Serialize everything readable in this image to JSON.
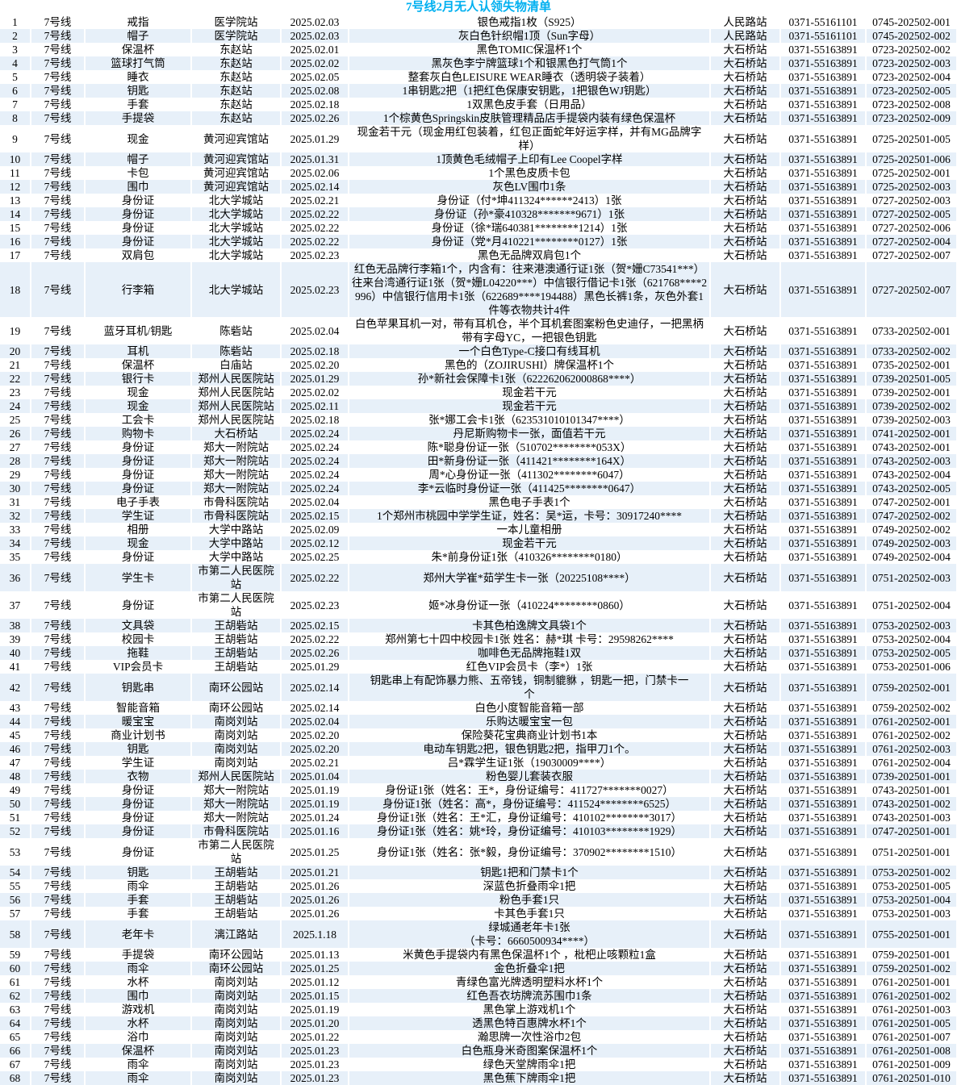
{
  "title": "7号线2月无人认领失物清单",
  "table": {
    "rows": [
      [
        "1",
        "7号线",
        "戒指",
        "医学院站",
        "2025.02.03",
        "银色戒指1枚（S925）",
        "人民路站",
        "0371-55161101",
        "0745-202502-001"
      ],
      [
        "2",
        "7号线",
        "帽子",
        "医学院站",
        "2025.02.03",
        "灰白色针织帽1顶（Sun字母）",
        "人民路站",
        "0371-55161101",
        "0745-202502-002"
      ],
      [
        "3",
        "7号线",
        "保温杯",
        "东赵站",
        "2025.02.01",
        "黑色TOMIC保温杯1个",
        "大石桥站",
        "0371-55163891",
        "0723-202502-002"
      ],
      [
        "4",
        "7号线",
        "篮球打气筒",
        "东赵站",
        "2025.02.02",
        "黑灰色李宁牌篮球1个和银黑色打气筒1个",
        "大石桥站",
        "0371-55163891",
        "0723-202502-003"
      ],
      [
        "5",
        "7号线",
        "睡衣",
        "东赵站",
        "2025.02.05",
        "整套灰白色LEISURE WEAR睡衣（透明袋子装着）",
        "大石桥站",
        "0371-55163891",
        "0723-202502-004"
      ],
      [
        "6",
        "7号线",
        "钥匙",
        "东赵站",
        "2025.02.08",
        "1串钥匙2把（1把红色保康安钥匙，1把银色WJ钥匙）",
        "大石桥站",
        "0371-55163891",
        "0723-202502-005"
      ],
      [
        "7",
        "7号线",
        "手套",
        "东赵站",
        "2025.02.18",
        "1双黑色皮手套（日用品）",
        "大石桥站",
        "0371-55163891",
        "0723-202502-008"
      ],
      [
        "8",
        "7号线",
        "手提袋",
        "东赵站",
        "2025.02.26",
        "1个棕黄色Springskin皮肤管理精品店手提袋内装有绿色保温杯",
        "大石桥站",
        "0371-55163891",
        "0723-202502-009"
      ],
      [
        "9",
        "7号线",
        "现金",
        "黄河迎宾馆站",
        "2025.01.29",
        "现金若干元（现金用红包装着，红包正面蛇年好运字样，并有MG品牌字样）",
        "大石桥站",
        "0371-55163891",
        "0725-202501-005"
      ],
      [
        "10",
        "7号线",
        "帽子",
        "黄河迎宾馆站",
        "2025.01.31",
        "1顶黄色毛绒帽子上印有Lee Coopel字样",
        "大石桥站",
        "0371-55163891",
        "0725-202501-006"
      ],
      [
        "11",
        "7号线",
        "卡包",
        "黄河迎宾馆站",
        "2025.02.06",
        "1个黑色皮质卡包",
        "大石桥站",
        "0371-55163891",
        "0725-202502-001"
      ],
      [
        "12",
        "7号线",
        "围巾",
        "黄河迎宾馆站",
        "2025.02.14",
        "灰色LV围巾1条",
        "大石桥站",
        "0371-55163891",
        "0725-202502-003"
      ],
      [
        "13",
        "7号线",
        "身份证",
        "北大学城站",
        "2025.02.21",
        "身份证（付*坤411324******2413）1张",
        "大石桥站",
        "0371-55163891",
        "0727-202502-003"
      ],
      [
        "14",
        "7号线",
        "身份证",
        "北大学城站",
        "2025.02.22",
        "身份证（孙*豪410328*******9671）1张",
        "大石桥站",
        "0371-55163891",
        "0727-202502-005"
      ],
      [
        "15",
        "7号线",
        "身份证",
        "北大学城站",
        "2025.02.22",
        "身份证（徐*瑞640381********1214）1张",
        "大石桥站",
        "0371-55163891",
        "0727-202502-006"
      ],
      [
        "16",
        "7号线",
        "身份证",
        "北大学城站",
        "2025.02.22",
        "身份证（党*月410221********0127）1张",
        "大石桥站",
        "0371-55163891",
        "0727-202502-004"
      ],
      [
        "17",
        "7号线",
        "双肩包",
        "北大学城站",
        "2025.02.23",
        "黑色无品牌双肩包1个",
        "大石桥站",
        "0371-55163891",
        "0727-202502-007"
      ],
      [
        "18",
        "7号线",
        "行李箱",
        "北大学城站",
        "2025.02.23",
        "红色无品牌行李箱1个，内含有：往来港澳通行证1张（贺*姗C73541***）往来台湾通行证1张（贺*姗L04220***）中信银行借记卡1张（621768****2996）中信银行信用卡1张（622689****194488）黑色长裤1条，灰色外套1件等衣物共计4件",
        "大石桥站",
        "0371-55163891",
        "0727-202502-007"
      ],
      [
        "19",
        "7号线",
        "蓝牙耳机/钥匙",
        "陈砦站",
        "2025.02.04",
        "白色苹果耳机一对，带有耳机仓，半个耳机套图案粉色史迪仔，一把黑柄带有字母YC，一把银色钥匙",
        "大石桥站",
        "0371-55163891",
        "0733-202502-001"
      ],
      [
        "20",
        "7号线",
        "耳机",
        "陈砦站",
        "2025.02.18",
        "一个白色Type-C接口有线耳机",
        "大石桥站",
        "0371-55163891",
        "0733-202502-002"
      ],
      [
        "21",
        "7号线",
        "保温杯",
        "白庙站",
        "2025.02.20",
        "黑色的（ZOJIRUSHI）牌保温杯1个",
        "大石桥站",
        "0371-55163891",
        "0735-202502-001"
      ],
      [
        "22",
        "7号线",
        "银行卡",
        "郑州人民医院站",
        "2025.01.29",
        "孙*新社会保障卡1张（622262062000868****）",
        "大石桥站",
        "0371-55163891",
        "0739-202501-005"
      ],
      [
        "23",
        "7号线",
        "现金",
        "郑州人民医院站",
        "2025.02.02",
        "现金若干元",
        "大石桥站",
        "0371-55163891",
        "0739-202502-001"
      ],
      [
        "24",
        "7号线",
        "现金",
        "郑州人民医院站",
        "2025.02.11",
        "现金若干元",
        "大石桥站",
        "0371-55163891",
        "0739-202502-002"
      ],
      [
        "25",
        "7号线",
        "工会卡",
        "郑州人民医院站",
        "2025.02.18",
        "张*娜工会卡1张（623531010101347****）",
        "大石桥站",
        "0371-55163891",
        "0739-202502-003"
      ],
      [
        "26",
        "7号线",
        "购物卡",
        "大石桥站",
        "2025.02.24",
        "丹尼斯购物卡一张，面值若干元",
        "大石桥站",
        "0371-55163891",
        "0741-202502-001"
      ],
      [
        "27",
        "7号线",
        "身份证",
        "郑大一附院站",
        "2025.02.24",
        "陈*聪身份证一张（510702********053X）",
        "大石桥站",
        "0371-55163891",
        "0743-202502-001"
      ],
      [
        "28",
        "7号线",
        "身份证",
        "郑大一附院站",
        "2025.02.24",
        "田*新身份证一张（411421********164X）",
        "大石桥站",
        "0371-55163891",
        "0743-202502-003"
      ],
      [
        "29",
        "7号线",
        "身份证",
        "郑大一附院站",
        "2025.02.24",
        "周*心身份证一张（411302********6047）",
        "大石桥站",
        "0371-55163891",
        "0743-202502-004"
      ],
      [
        "30",
        "7号线",
        "身份证",
        "郑大一附院站",
        "2025.02.24",
        "李*云临时身份证一张（411425********0647）",
        "大石桥站",
        "0371-55163891",
        "0743-202502-005"
      ],
      [
        "31",
        "7号线",
        "电子手表",
        "市骨科医院站",
        "2025.02.04",
        "黑色电子手表1个",
        "大石桥站",
        "0371-55163891",
        "0747-202502-001"
      ],
      [
        "32",
        "7号线",
        "学生证",
        "市骨科医院站",
        "2025.02.15",
        "1个郑州市桃园中学学生证，姓名：吴*运，卡号：30917240****",
        "大石桥站",
        "0371-55163891",
        "0747-202502-002"
      ],
      [
        "33",
        "7号线",
        "相册",
        "大学中路站",
        "2025.02.09",
        "一本儿童相册",
        "大石桥站",
        "0371-55163891",
        "0749-202502-002"
      ],
      [
        "34",
        "7号线",
        "现金",
        "大学中路站",
        "2025.02.12",
        "现金若干元",
        "大石桥站",
        "0371-55163891",
        "0749-202502-003"
      ],
      [
        "35",
        "7号线",
        "身份证",
        "大学中路站",
        "2025.02.25",
        "朱*前身份证1张（410326********0180）",
        "大石桥站",
        "0371-55163891",
        "0749-202502-004"
      ],
      [
        "36",
        "7号线",
        "学生卡",
        "市第二人民医院站",
        "2025.02.22",
        "郑州大学崔*茹学生卡一张（20225108****）",
        "大石桥站",
        "0371-55163891",
        "0751-202502-003"
      ],
      [
        "37",
        "7号线",
        "身份证",
        "市第二人民医院站",
        "2025.02.23",
        "姬*冰身份证一张（410224********0860）",
        "大石桥站",
        "0371-55163891",
        "0751-202502-004"
      ],
      [
        "38",
        "7号线",
        "文具袋",
        "王胡砦站",
        "2025.02.15",
        "卡其色柏逸牌文具袋1个",
        "大石桥站",
        "0371-55163891",
        "0753-202502-003"
      ],
      [
        "39",
        "7号线",
        "校园卡",
        "王胡砦站",
        "2025.02.22",
        "郑州第七十四中校园卡1张 姓名：赫*琪 卡号：29598262****",
        "大石桥站",
        "0371-55163891",
        "0753-202502-004"
      ],
      [
        "40",
        "7号线",
        "拖鞋",
        "王胡砦站",
        "2025.02.26",
        "咖啡色无品牌拖鞋1双",
        "大石桥站",
        "0371-55163891",
        "0753-202502-005"
      ],
      [
        "41",
        "7号线",
        "VIP会员卡",
        "王胡砦站",
        "2025.01.29",
        "红色VIP会员卡（李*）1张",
        "大石桥站",
        "0371-55163891",
        "0753-202501-006"
      ],
      [
        "42",
        "7号线",
        "钥匙串",
        "南环公园站",
        "2025.02.14",
        "钥匙串上有配饰暴力熊、五帝钱，铜制貔貅 ，钥匙一把，门禁卡一\n个",
        "大石桥站",
        "0371-55163891",
        "0759-202502-001"
      ],
      [
        "43",
        "7号线",
        "智能音箱",
        "南环公园站",
        "2025.02.14",
        "白色小度智能音箱一部",
        "大石桥站",
        "0371-55163891",
        "0759-202502-002"
      ],
      [
        "44",
        "7号线",
        "暖宝宝",
        "南岗刘站",
        "2025.02.04",
        "乐购达暖宝宝一包",
        "大石桥站",
        "0371-55163891",
        "0761-202502-001"
      ],
      [
        "45",
        "7号线",
        "商业计划书",
        "南岗刘站",
        "2025.02.20",
        "保险葵花宝典商业计划书1本",
        "大石桥站",
        "0371-55163891",
        "0761-202502-002"
      ],
      [
        "46",
        "7号线",
        "钥匙",
        "南岗刘站",
        "2025.02.20",
        "电动车钥匙2把，银色钥匙2把，指甲刀1个。",
        "大石桥站",
        "0371-55163891",
        "0761-202502-003"
      ],
      [
        "47",
        "7号线",
        "学生证",
        "南岗刘站",
        "2025.02.21",
        "吕*霖学生证1张（19030009****）",
        "大石桥站",
        "0371-55163891",
        "0761-202502-004"
      ],
      [
        "48",
        "7号线",
        "衣物",
        "郑州人民医院站",
        "2025.01.04",
        "粉色婴儿套装衣服",
        "大石桥站",
        "0371-55163891",
        "0739-202501-001"
      ],
      [
        "49",
        "7号线",
        "身份证",
        "郑大一附院站",
        "2025.01.19",
        "身份证1张（姓名：王*，身份证编号：411727*******0027）",
        "大石桥站",
        "0371-55163891",
        "0743-202501-001"
      ],
      [
        "50",
        "7号线",
        "身份证",
        "郑大一附院站",
        "2025.01.19",
        "身份证1张（姓名：高*，身份证编号：411524********6525）",
        "大石桥站",
        "0371-55163891",
        "0743-202501-002"
      ],
      [
        "51",
        "7号线",
        "身份证",
        "郑大一附院站",
        "2025.01.24",
        "身份证1张（姓名：王*汇，身份证编号：410102********3017）",
        "大石桥站",
        "0371-55163891",
        "0743-202501-003"
      ],
      [
        "52",
        "7号线",
        "身份证",
        "市骨科医院站",
        "2025.01.16",
        "身份证1张（姓名：姚*玲，身份证编号：410103********1929）",
        "大石桥站",
        "0371-55163891",
        "0747-202501-001"
      ],
      [
        "53",
        "7号线",
        "身份证",
        "市第二人民医院站",
        "2025.01.25",
        "身份证1张（姓名：张*毅，身份证编号：370902********1510）",
        "大石桥站",
        "0371-55163891",
        "0751-202501-001"
      ],
      [
        "54",
        "7号线",
        "钥匙",
        "王胡砦站",
        "2025.01.21",
        "钥匙1把和门禁卡1个",
        "大石桥站",
        "0371-55163891",
        "0753-202501-002"
      ],
      [
        "55",
        "7号线",
        "雨伞",
        "王胡砦站",
        "2025.01.26",
        "深蓝色折叠雨伞1把",
        "大石桥站",
        "0371-55163891",
        "0753-202501-005"
      ],
      [
        "56",
        "7号线",
        "手套",
        "王胡砦站",
        "2025.01.26",
        "粉色手套1只",
        "大石桥站",
        "0371-55163891",
        "0753-202501-004"
      ],
      [
        "57",
        "7号线",
        "手套",
        "王胡砦站",
        "2025.01.26",
        "卡其色手套1只",
        "大石桥站",
        "0371-55163891",
        "0753-202501-003"
      ],
      [
        "58",
        "7号线",
        "老年卡",
        "漓江路站",
        "2025.1.18",
        "绿城通老年卡1张\n（卡号：6660500934****）",
        "大石桥站",
        "0371-55163891",
        "0755-202501-001"
      ],
      [
        "59",
        "7号线",
        "手提袋",
        "南环公园站",
        "2025.01.13",
        "米黄色手提袋内有黑色保温杯1个 ，枇杷止咳颗粒1盒",
        "大石桥站",
        "0371-55163891",
        "0759-202501-001"
      ],
      [
        "60",
        "7号线",
        "雨伞",
        "南环公园站",
        "2025.01.25",
        "金色折叠伞1把",
        "大石桥站",
        "0371-55163891",
        "0759-202501-002"
      ],
      [
        "61",
        "7号线",
        "水杯",
        "南岗刘站",
        "2025.01.12",
        "青绿色富光牌透明塑料水杯1个",
        "大石桥站",
        "0371-55163891",
        "0761-202501-001"
      ],
      [
        "62",
        "7号线",
        "围巾",
        "南岗刘站",
        "2025.01.15",
        "红色吾衣坊牌流苏围巾1条",
        "大石桥站",
        "0371-55163891",
        "0761-202501-002"
      ],
      [
        "63",
        "7号线",
        "游戏机",
        "南岗刘站",
        "2025.01.19",
        "黑色掌上游戏机1个",
        "大石桥站",
        "0371-55163891",
        "0761-202501-003"
      ],
      [
        "64",
        "7号线",
        "水杯",
        "南岗刘站",
        "2025.01.20",
        "透黑色特百惠牌水杯1个",
        "大石桥站",
        "0371-55163891",
        "0761-202501-005"
      ],
      [
        "65",
        "7号线",
        "浴巾",
        "南岗刘站",
        "2025.01.22",
        "瀚思牌一次性浴巾2包",
        "大石桥站",
        "0371-55163891",
        "0761-202501-007"
      ],
      [
        "66",
        "7号线",
        "保温杯",
        "南岗刘站",
        "2025.01.23",
        "白色瓶身米奇图案保温杯1个",
        "大石桥站",
        "0371-55163891",
        "0761-202501-008"
      ],
      [
        "67",
        "7号线",
        "雨伞",
        "南岗刘站",
        "2025.01.23",
        "绿色天堂牌雨伞1把",
        "大石桥站",
        "0371-55163891",
        "0761-202501-009"
      ],
      [
        "68",
        "7号线",
        "雨伞",
        "南岗刘站",
        "2025.01.23",
        "黑色蕉下牌雨伞1把",
        "大石桥站",
        "0371-55163891",
        "0761-202501-010"
      ]
    ]
  }
}
